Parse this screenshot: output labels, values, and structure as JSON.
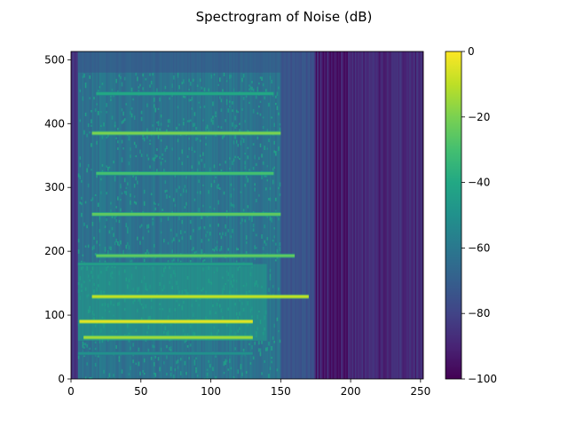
{
  "chart_data": {
    "type": "heatmap",
    "title": "Spectrogram of Noise (dB)",
    "xlabel": "",
    "ylabel": "",
    "xlim": [
      0,
      252
    ],
    "ylim": [
      0,
      513
    ],
    "x_ticks": [
      0,
      50,
      100,
      150,
      200,
      250
    ],
    "y_ticks": [
      0,
      100,
      200,
      300,
      400,
      500
    ],
    "colormap": "viridis",
    "colorbar": {
      "range": [
        -100,
        0
      ],
      "ticks": [
        0,
        -20,
        -40,
        -60,
        -80,
        -100
      ],
      "tick_labels": [
        "0",
        "−20",
        "−40",
        "−60",
        "−80",
        "−100"
      ]
    },
    "background_db": -75,
    "quiet_region": {
      "x_start": 174,
      "x_end": 252,
      "level_db": -88
    },
    "broadband_region": {
      "x_start": 5,
      "x_end": 150,
      "y_start": 0,
      "y_end": 480,
      "level_db": -62
    },
    "energy_cluster": {
      "x_start": 5,
      "x_end": 140,
      "y_start": 60,
      "y_end": 180,
      "level_db": -45
    },
    "tonal_lines": [
      {
        "freq": 447,
        "x_start": 18,
        "x_end": 145,
        "level_db": -40
      },
      {
        "freq": 385,
        "x_start": 15,
        "x_end": 150,
        "level_db": -20
      },
      {
        "freq": 322,
        "x_start": 18,
        "x_end": 145,
        "level_db": -30
      },
      {
        "freq": 258,
        "x_start": 15,
        "x_end": 150,
        "level_db": -25
      },
      {
        "freq": 193,
        "x_start": 18,
        "x_end": 160,
        "level_db": -25
      },
      {
        "freq": 180,
        "x_start": 5,
        "x_end": 130,
        "level_db": -45
      },
      {
        "freq": 129,
        "x_start": 15,
        "x_end": 170,
        "level_db": -10
      },
      {
        "freq": 90,
        "x_start": 6,
        "x_end": 130,
        "level_db": -5
      },
      {
        "freq": 65,
        "x_start": 9,
        "x_end": 130,
        "level_db": -15
      },
      {
        "freq": 40,
        "x_start": 5,
        "x_end": 130,
        "level_db": -50
      }
    ]
  }
}
